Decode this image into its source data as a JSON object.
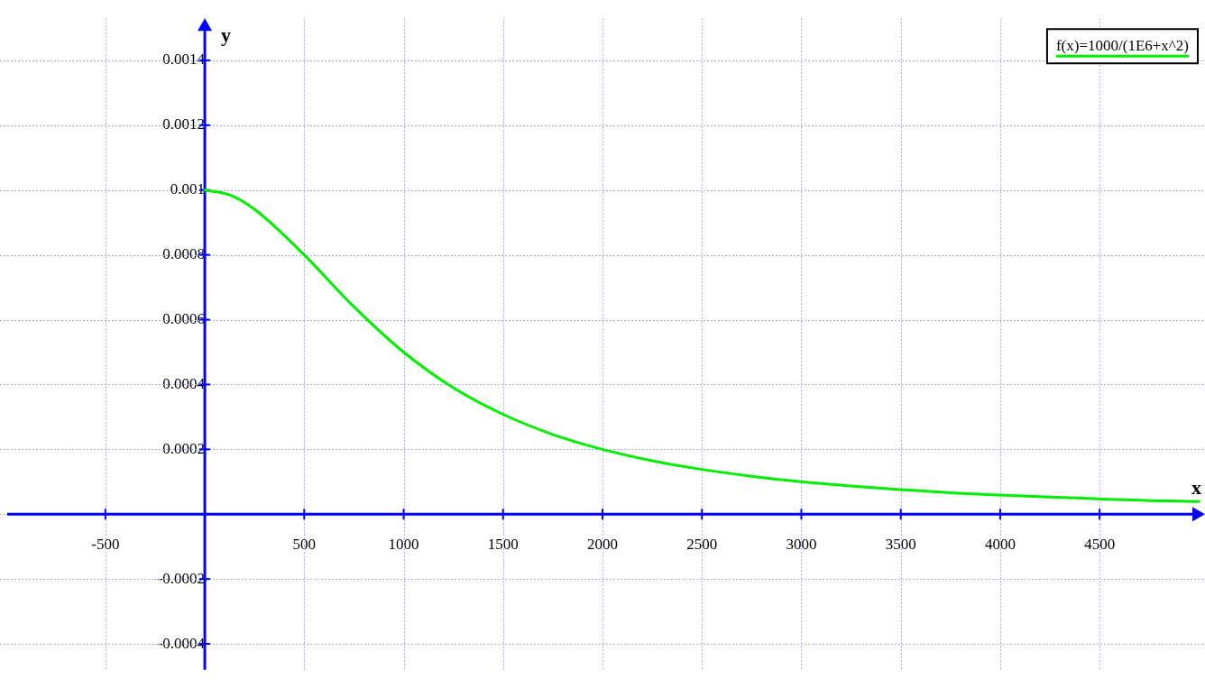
{
  "chart_data": {
    "type": "line",
    "xlabel": "x",
    "ylabel": "y",
    "x": [
      0,
      125,
      250,
      500,
      750,
      1000,
      1250,
      1500,
      1750,
      2000,
      2250,
      2500,
      2750,
      3000,
      3250,
      3500,
      3750,
      4000,
      4250,
      4500,
      4750,
      5000
    ],
    "series": [
      {
        "name": "f(x)=1000/(1E6+x^2)",
        "color": "#00ee00",
        "values": [
          0.001,
          0.000985,
          0.000941,
          0.0008,
          0.00064,
          0.0005,
          0.00039,
          0.000308,
          0.000246,
          0.0002,
          0.000165,
          0.000138,
          0.000117,
          0.0001,
          8.7e-05,
          7.6e-05,
          6.6e-05,
          5.9e-05,
          5.3e-05,
          4.7e-05,
          4.2e-05,
          3.9e-05
        ]
      }
    ],
    "xlim": [
      -1030,
      5030
    ],
    "xticks": [
      -500,
      {
        "value": 0,
        "label": null
      },
      500,
      1000,
      1500,
      2000,
      2500,
      3000,
      3500,
      4000,
      4500
    ],
    "ylim": [
      -0.00048,
      0.00153
    ],
    "yticks": [
      -0.0004,
      -0.0002,
      {
        "value": 0,
        "label": null
      },
      0.0002,
      0.0004,
      0.0006,
      0.0008,
      0.001,
      0.0012,
      0.0014
    ],
    "grid": true,
    "legend": "top right",
    "marker": "none",
    "line_style": "solid"
  }
}
